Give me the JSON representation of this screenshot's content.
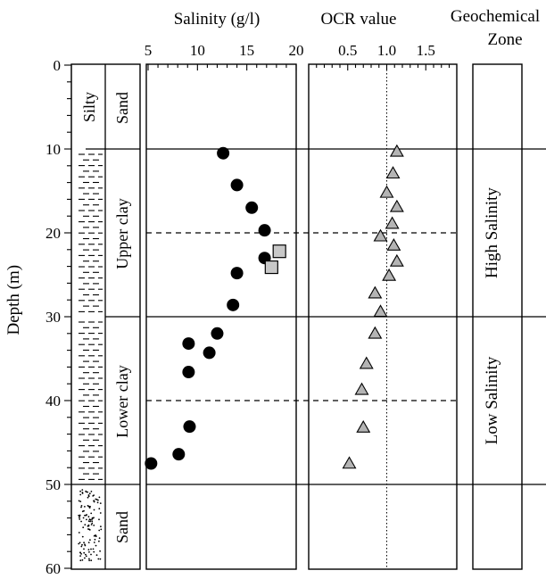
{
  "chart_data": {
    "type": "scatter",
    "depth_axis": {
      "label": "Depth (m)",
      "range": [
        0,
        60
      ],
      "ticks": [
        0,
        10,
        20,
        30,
        40,
        50,
        60
      ],
      "reversed": true
    },
    "lithology_column": {
      "units": [
        {
          "name": "Silty",
          "label": "Sand",
          "top": 0,
          "bottom": 10,
          "pattern": "blank"
        },
        {
          "name": "",
          "label": "Upper  clay",
          "top": 10,
          "bottom": 30,
          "pattern": "clay"
        },
        {
          "name": "",
          "label": "Lower clay",
          "top": 30,
          "bottom": 50,
          "pattern": "clay"
        },
        {
          "name": "",
          "label": "Sand",
          "top": 50,
          "bottom": 60,
          "pattern": "sand"
        }
      ]
    },
    "salinity_panel": {
      "title": "Salinity (g/l)",
      "range": [
        5,
        20
      ],
      "ticks": [
        5,
        10,
        15,
        20
      ],
      "series": [
        {
          "marker": "circle",
          "color": "#000000",
          "points": [
            {
              "x": 12.6,
              "y": 10.5
            },
            {
              "x": 14.0,
              "y": 14.3
            },
            {
              "x": 15.5,
              "y": 17.0
            },
            {
              "x": 16.8,
              "y": 19.7
            },
            {
              "x": 16.8,
              "y": 23.0
            },
            {
              "x": 14.0,
              "y": 24.8
            },
            {
              "x": 13.6,
              "y": 28.6
            },
            {
              "x": 12.0,
              "y": 32.0
            },
            {
              "x": 9.1,
              "y": 33.2
            },
            {
              "x": 11.2,
              "y": 34.3
            },
            {
              "x": 9.1,
              "y": 36.6
            },
            {
              "x": 9.2,
              "y": 43.1
            },
            {
              "x": 8.1,
              "y": 46.4
            },
            {
              "x": 5.3,
              "y": 47.5
            }
          ]
        },
        {
          "marker": "square",
          "color": "#c8c8c8",
          "points": [
            {
              "x": 18.3,
              "y": 22.2
            },
            {
              "x": 17.5,
              "y": 24.1
            }
          ]
        }
      ]
    },
    "ocr_panel": {
      "title": "OCR value",
      "range": [
        0,
        2
      ],
      "ticks": [
        0.5,
        1.0,
        1.5
      ],
      "tick_labels": [
        "0.5",
        "1.0",
        "1.5"
      ],
      "reference_line": 1.0,
      "series": [
        {
          "marker": "triangle",
          "color": "#b4b4b4",
          "points": [
            {
              "x": 1.13,
              "y": 10.3
            },
            {
              "x": 1.08,
              "y": 12.9
            },
            {
              "x": 1.0,
              "y": 15.2
            },
            {
              "x": 1.13,
              "y": 16.9
            },
            {
              "x": 1.07,
              "y": 18.9
            },
            {
              "x": 0.92,
              "y": 20.4
            },
            {
              "x": 1.09,
              "y": 21.5
            },
            {
              "x": 1.13,
              "y": 23.4
            },
            {
              "x": 1.03,
              "y": 25.1
            },
            {
              "x": 0.85,
              "y": 27.2
            },
            {
              "x": 0.92,
              "y": 29.4
            },
            {
              "x": 0.85,
              "y": 32.0
            },
            {
              "x": 0.74,
              "y": 35.6
            },
            {
              "x": 0.68,
              "y": 38.7
            },
            {
              "x": 0.7,
              "y": 43.2
            },
            {
              "x": 0.52,
              "y": 47.5
            }
          ]
        }
      ]
    },
    "zone_panel": {
      "title_line1": "Geochemical",
      "title_line2": "Zone",
      "zones": [
        {
          "label": "High Salinity",
          "top": 10,
          "bottom": 30
        },
        {
          "label": "Low Salinity",
          "top": 30,
          "bottom": 50
        }
      ]
    },
    "solid_boundaries": [
      10,
      30,
      50
    ],
    "dashed_boundaries": [
      20,
      40
    ]
  }
}
